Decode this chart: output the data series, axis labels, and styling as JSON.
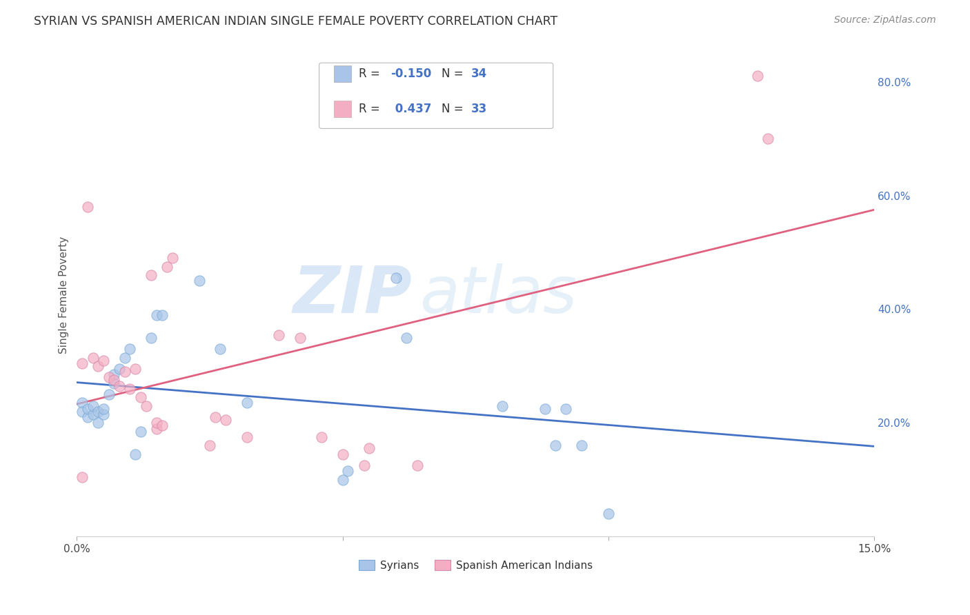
{
  "title": "SYRIAN VS SPANISH AMERICAN INDIAN SINGLE FEMALE POVERTY CORRELATION CHART",
  "source": "Source: ZipAtlas.com",
  "ylabel": "Single Female Poverty",
  "xlim": [
    0.0,
    0.15
  ],
  "ylim": [
    0.0,
    0.85
  ],
  "ytick_labels_right": [
    "20.0%",
    "40.0%",
    "60.0%",
    "80.0%"
  ],
  "yticks_right": [
    0.2,
    0.4,
    0.6,
    0.8
  ],
  "syrian_color": "#a8c4e8",
  "spanish_color": "#f4aec4",
  "syrian_line_color": "#4472c4",
  "spanish_line_color": "#e06080",
  "watermark_zip": "ZIP",
  "watermark_atlas": "atlas",
  "syrians_x": [
    0.001,
    0.001,
    0.002,
    0.002,
    0.003,
    0.003,
    0.004,
    0.004,
    0.005,
    0.005,
    0.006,
    0.007,
    0.007,
    0.008,
    0.009,
    0.01,
    0.011,
    0.012,
    0.014,
    0.015,
    0.016,
    0.023,
    0.027,
    0.032,
    0.05,
    0.051,
    0.06,
    0.062,
    0.08,
    0.088,
    0.09,
    0.092,
    0.095,
    0.1
  ],
  "syrians_y": [
    0.235,
    0.22,
    0.21,
    0.225,
    0.215,
    0.23,
    0.2,
    0.22,
    0.215,
    0.225,
    0.25,
    0.27,
    0.285,
    0.295,
    0.315,
    0.33,
    0.145,
    0.185,
    0.35,
    0.39,
    0.39,
    0.45,
    0.33,
    0.235,
    0.1,
    0.115,
    0.455,
    0.35,
    0.23,
    0.225,
    0.16,
    0.225,
    0.16,
    0.04
  ],
  "spanish_x": [
    0.001,
    0.001,
    0.002,
    0.003,
    0.004,
    0.005,
    0.006,
    0.007,
    0.008,
    0.009,
    0.01,
    0.011,
    0.012,
    0.013,
    0.014,
    0.015,
    0.015,
    0.016,
    0.017,
    0.018,
    0.025,
    0.026,
    0.028,
    0.032,
    0.038,
    0.042,
    0.046,
    0.05,
    0.054,
    0.055,
    0.064,
    0.128,
    0.13
  ],
  "spanish_y": [
    0.105,
    0.305,
    0.58,
    0.315,
    0.3,
    0.31,
    0.28,
    0.275,
    0.265,
    0.29,
    0.26,
    0.295,
    0.245,
    0.23,
    0.46,
    0.19,
    0.2,
    0.195,
    0.475,
    0.49,
    0.16,
    0.21,
    0.205,
    0.175,
    0.355,
    0.35,
    0.175,
    0.145,
    0.125,
    0.155,
    0.125,
    0.81,
    0.7
  ]
}
